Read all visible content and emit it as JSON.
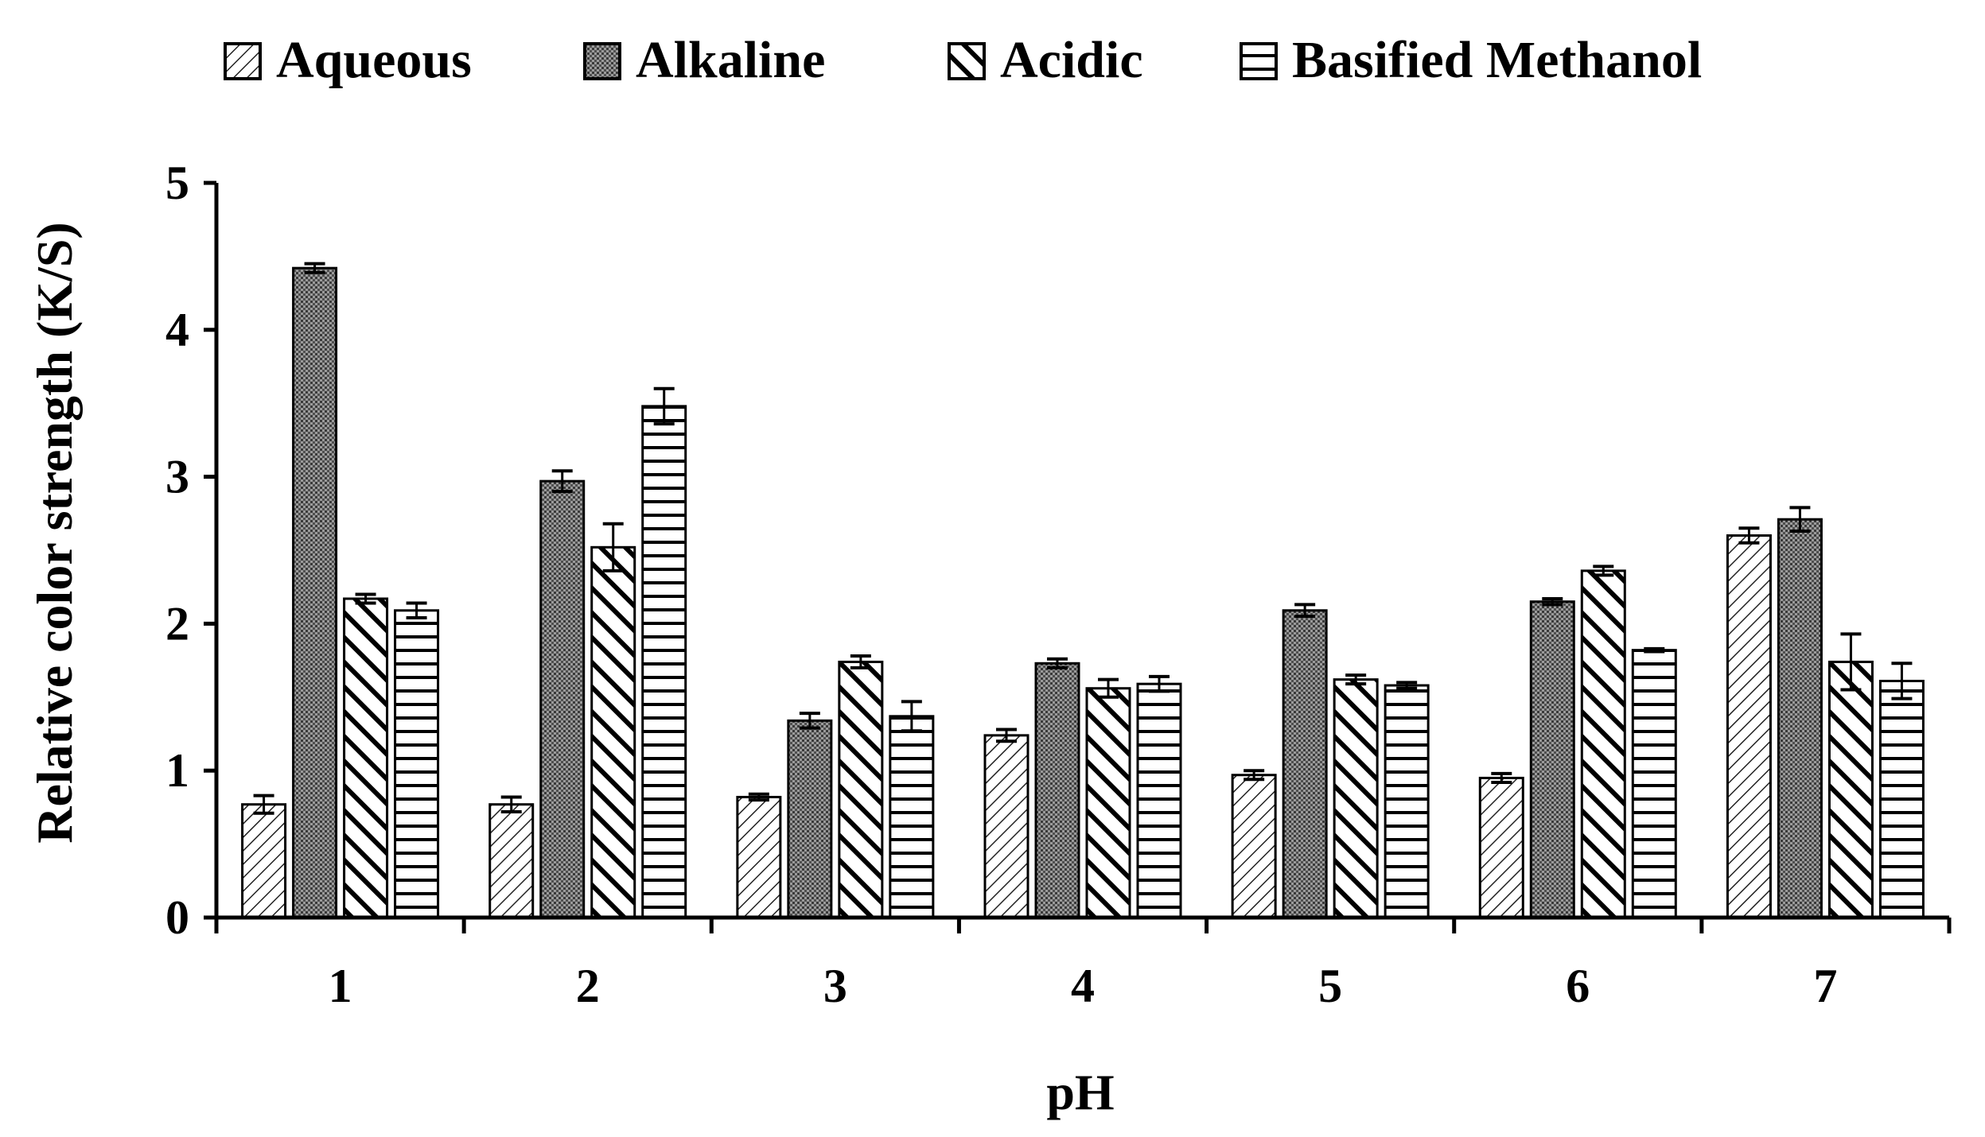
{
  "chart_data": {
    "type": "bar",
    "xlabel": "pH",
    "ylabel": "Relative color strength (K/S)",
    "ylim": [
      0,
      5
    ],
    "yticks": [
      "0",
      "1",
      "2",
      "3",
      "4",
      "5"
    ],
    "categories": [
      "1",
      "2",
      "3",
      "4",
      "5",
      "6",
      "7"
    ],
    "legend_position": "top",
    "series": [
      {
        "name": "Aqueous",
        "pattern": "diagonal-fine",
        "values": [
          0.77,
          0.77,
          0.82,
          1.24,
          0.97,
          0.95,
          2.6
        ],
        "errors": [
          0.06,
          0.05,
          0.02,
          0.04,
          0.03,
          0.03,
          0.05
        ]
      },
      {
        "name": "Alkaline",
        "pattern": "dotted-dense",
        "values": [
          4.42,
          2.97,
          1.34,
          1.73,
          2.09,
          2.15,
          2.71
        ],
        "errors": [
          0.03,
          0.07,
          0.05,
          0.03,
          0.04,
          0.02,
          0.08
        ]
      },
      {
        "name": "Acidic",
        "pattern": "diagonal-thick",
        "values": [
          2.17,
          2.52,
          1.74,
          1.56,
          1.62,
          2.36,
          1.74
        ],
        "errors": [
          0.03,
          0.16,
          0.04,
          0.06,
          0.03,
          0.03,
          0.19
        ]
      },
      {
        "name": "Basified Methanol",
        "pattern": "horizontal-lines",
        "values": [
          2.09,
          3.48,
          1.37,
          1.59,
          1.58,
          1.82,
          1.61
        ],
        "errors": [
          0.05,
          0.12,
          0.1,
          0.05,
          0.02,
          0.01,
          0.12
        ]
      }
    ]
  }
}
